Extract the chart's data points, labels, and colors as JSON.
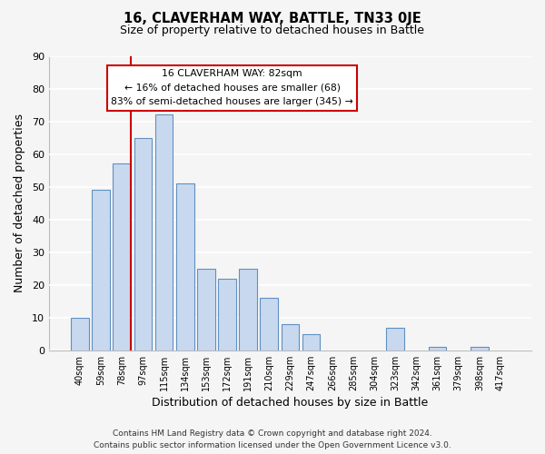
{
  "title": "16, CLAVERHAM WAY, BATTLE, TN33 0JE",
  "subtitle": "Size of property relative to detached houses in Battle",
  "xlabel": "Distribution of detached houses by size in Battle",
  "ylabel": "Number of detached properties",
  "bar_labels": [
    "40sqm",
    "59sqm",
    "78sqm",
    "97sqm",
    "115sqm",
    "134sqm",
    "153sqm",
    "172sqm",
    "191sqm",
    "210sqm",
    "229sqm",
    "247sqm",
    "266sqm",
    "285sqm",
    "304sqm",
    "323sqm",
    "342sqm",
    "361sqm",
    "379sqm",
    "398sqm",
    "417sqm"
  ],
  "bar_values": [
    10,
    49,
    57,
    65,
    72,
    51,
    25,
    22,
    25,
    16,
    8,
    5,
    0,
    0,
    0,
    7,
    0,
    1,
    0,
    1,
    0
  ],
  "bar_color": "#c8d9ef",
  "bar_edge_color": "#6090c0",
  "ylim": [
    0,
    90
  ],
  "yticks": [
    0,
    10,
    20,
    30,
    40,
    50,
    60,
    70,
    80,
    90
  ],
  "red_line_index": 2,
  "property_line_label": "16 CLAVERHAM WAY: 82sqm",
  "annotation_line1": "← 16% of detached houses are smaller (68)",
  "annotation_line2": "83% of semi-detached houses are larger (345) →",
  "footer_line1": "Contains HM Land Registry data © Crown copyright and database right 2024.",
  "footer_line2": "Contains public sector information licensed under the Open Government Licence v3.0.",
  "background_color": "#f5f5f5",
  "grid_color": "#ffffff",
  "annotation_box_facecolor": "#ffffff",
  "annotation_box_edgecolor": "#cc0000",
  "red_line_color": "#cc0000"
}
